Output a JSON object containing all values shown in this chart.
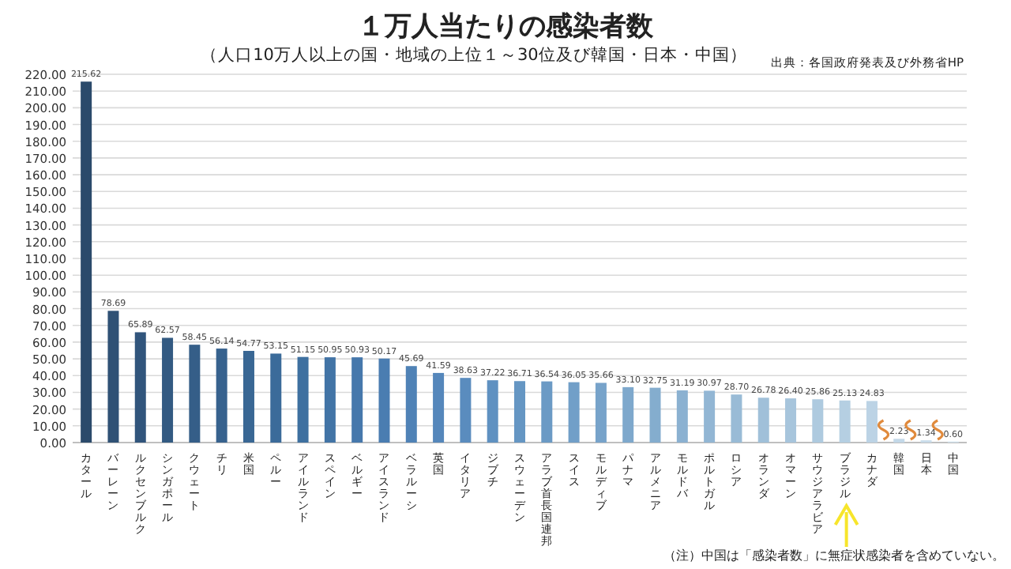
{
  "chart_data": {
    "type": "bar",
    "title": "１万人当たりの感染者数",
    "subtitle": "（人口10万人以上の国・地域の上位１～30位及び韓国・日本・中国）",
    "annotations": [
      "出典：各国政府発表及び外務省HP",
      "（注）中国は「感染者数」に無症状感染者を含めていない。"
    ],
    "categories": [
      "カタール",
      "バーレーン",
      "ルクセンブルク",
      "シンガポール",
      "クウェート",
      "チリ",
      "米国",
      "ペルー",
      "アイルランド",
      "スペイン",
      "ベルギー",
      "アイスランド",
      "ベラルーシ",
      "英国",
      "イタリア",
      "ジブチ",
      "スウェーデン",
      "アラブ首長国連邦",
      "スイス",
      "モルディブ",
      "パナマ",
      "アルメニア",
      "モルドバ",
      "ポルトガル",
      "ロシア",
      "オランダ",
      "オマーン",
      "サウジアラビア",
      "ブラジル",
      "カナダ",
      "韓国",
      "日本",
      "中国"
    ],
    "values": [
      215.62,
      78.69,
      65.89,
      62.57,
      58.45,
      56.14,
      54.77,
      53.15,
      51.15,
      50.95,
      50.93,
      50.17,
      45.69,
      41.59,
      38.63,
      37.22,
      36.71,
      36.54,
      36.05,
      35.66,
      33.1,
      32.75,
      31.19,
      30.97,
      28.7,
      26.78,
      26.4,
      25.86,
      25.13,
      24.83,
      2.23,
      1.34,
      0.6
    ],
    "value_labels": [
      "215.62",
      "78.69",
      "65.89",
      "62.57",
      "58.45",
      "56.14",
      "54.77",
      "53.15",
      "51.15",
      "50.95",
      "50.93",
      "50.17",
      "45.69",
      "41.59",
      "38.63",
      "37.22",
      "36.71",
      "36.54",
      "36.05",
      "35.66",
      "33.10",
      "32.75",
      "31.19",
      "30.97",
      "28.70",
      "26.78",
      "26.40",
      "25.86",
      "25.13",
      "24.83",
      "2.23",
      "1.34",
      "0.60"
    ],
    "colors": [
      "#2b4a6b",
      "#2f5175",
      "#31557c",
      "#335a82",
      "#355e88",
      "#37628e",
      "#396794",
      "#3b6b9a",
      "#3e70a0",
      "#4274a6",
      "#4678ac",
      "#4a7db1",
      "#4f82b6",
      "#5587bb",
      "#5a8cbe",
      "#5f91c1",
      "#6596c3",
      "#6b9ac5",
      "#719fc8",
      "#77a3ca",
      "#7ea8cc",
      "#84adce",
      "#8bb1d1",
      "#92b6d4",
      "#99bbd6",
      "#a0c0d9",
      "#a7c5dc",
      "#aecadf",
      "#b5cfe2",
      "#bcd3e5",
      "#c3d8e8",
      "#c9dcea",
      "#cfe0ec"
    ],
    "ylim": [
      0,
      220
    ],
    "yticks": [
      {
        "value": 0,
        "label": "0.00"
      },
      {
        "value": 10,
        "label": "10.00"
      },
      {
        "value": 20,
        "label": "20.00"
      },
      {
        "value": 30,
        "label": "30.00"
      },
      {
        "value": 40,
        "label": "40.00"
      },
      {
        "value": 50,
        "label": "50.00"
      },
      {
        "value": 60,
        "label": "60.00"
      },
      {
        "value": 70,
        "label": "70.00"
      },
      {
        "value": 80,
        "label": "80.00"
      },
      {
        "value": 90,
        "label": "90.00"
      },
      {
        "value": 100,
        "label": "100.00"
      },
      {
        "value": 110,
        "label": "110.00"
      },
      {
        "value": 120,
        "label": "120.00"
      },
      {
        "value": 130,
        "label": "130.00"
      },
      {
        "value": 140,
        "label": "140.00"
      },
      {
        "value": 150,
        "label": "150.00"
      },
      {
        "value": 160,
        "label": "160.00"
      },
      {
        "value": 170,
        "label": "170.00"
      },
      {
        "value": 180,
        "label": "180.00"
      },
      {
        "value": 190,
        "label": "190.00"
      },
      {
        "value": 200,
        "label": "200.00"
      },
      {
        "value": 210,
        "label": "210.00"
      },
      {
        "value": 220,
        "label": "220.00"
      }
    ],
    "grid": "y"
  }
}
